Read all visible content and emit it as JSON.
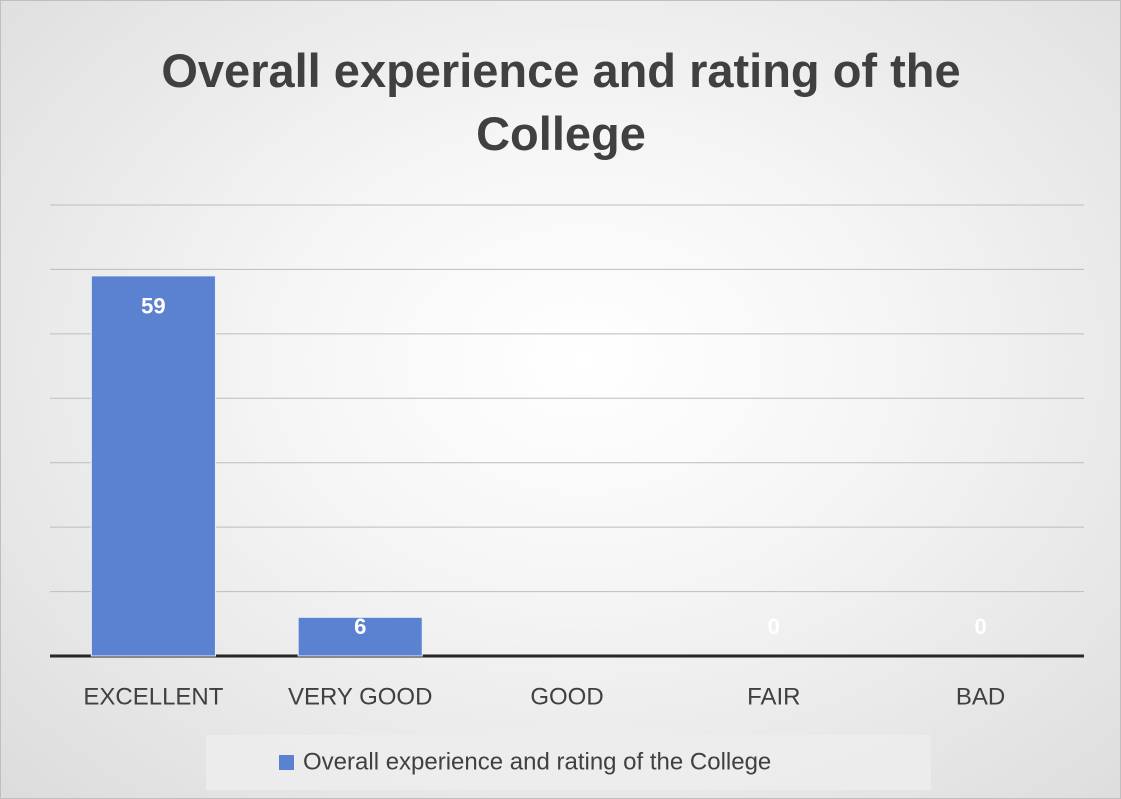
{
  "chart_data": {
    "type": "bar",
    "title": "Overall experience and rating of the College",
    "categories": [
      "EXCELLENT",
      "VERY GOOD",
      "GOOD",
      "FAIR",
      "BAD"
    ],
    "series": [
      {
        "name": "Overall experience and rating of the College",
        "color": "#5b82d0",
        "values": [
          59,
          6,
          null,
          0,
          0
        ]
      }
    ],
    "ylim": [
      0,
      70
    ],
    "yticks": [
      0,
      10,
      20,
      30,
      40,
      50,
      60,
      70
    ],
    "grid": true,
    "legend": "bottom"
  }
}
